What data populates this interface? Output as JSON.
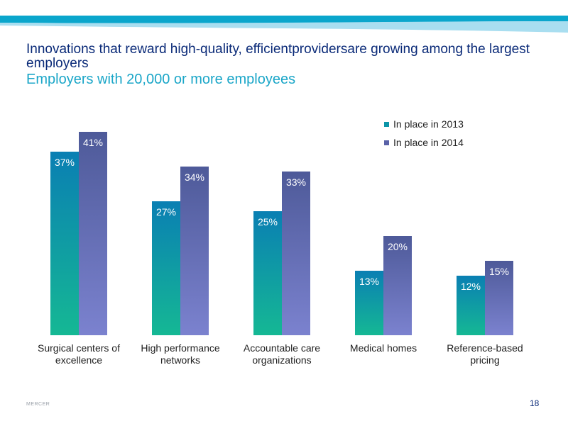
{
  "title": "Innovations that reward high-quality,  efficientprovidersare growing among the largest employers",
  "subtitle": "Employers with 20,000 or more employees",
  "footer": "MERCER",
  "page_number": "18",
  "colors": {
    "series_2013_top": "#0a7fb3",
    "series_2013_bottom": "#15b894",
    "series_2014_top": "#4e5a99",
    "series_2014_bottom": "#7b82cf",
    "title": "#0a2a78",
    "subtitle": "#1aa6c8"
  },
  "chart_data": {
    "type": "bar",
    "title": "",
    "xlabel": "",
    "ylabel": "",
    "ylim": [
      0,
      45
    ],
    "grid": false,
    "legend_position": "top-right",
    "categories": [
      [
        "Surgical centers of",
        "excellence"
      ],
      [
        "High performance",
        "networks"
      ],
      [
        "Accountable care",
        "organizations"
      ],
      [
        "Medical homes"
      ],
      [
        "Reference-based",
        "pricing"
      ]
    ],
    "series": [
      {
        "name": "In place in 2013",
        "values": [
          37,
          27,
          25,
          13,
          12
        ],
        "labels": [
          "37%",
          "27%",
          "25%",
          "13%",
          "12%"
        ]
      },
      {
        "name": "In place in 2014",
        "values": [
          41,
          34,
          33,
          20,
          15
        ],
        "labels": [
          "41%",
          "34%",
          "33%",
          "20%",
          "15%"
        ]
      }
    ]
  }
}
